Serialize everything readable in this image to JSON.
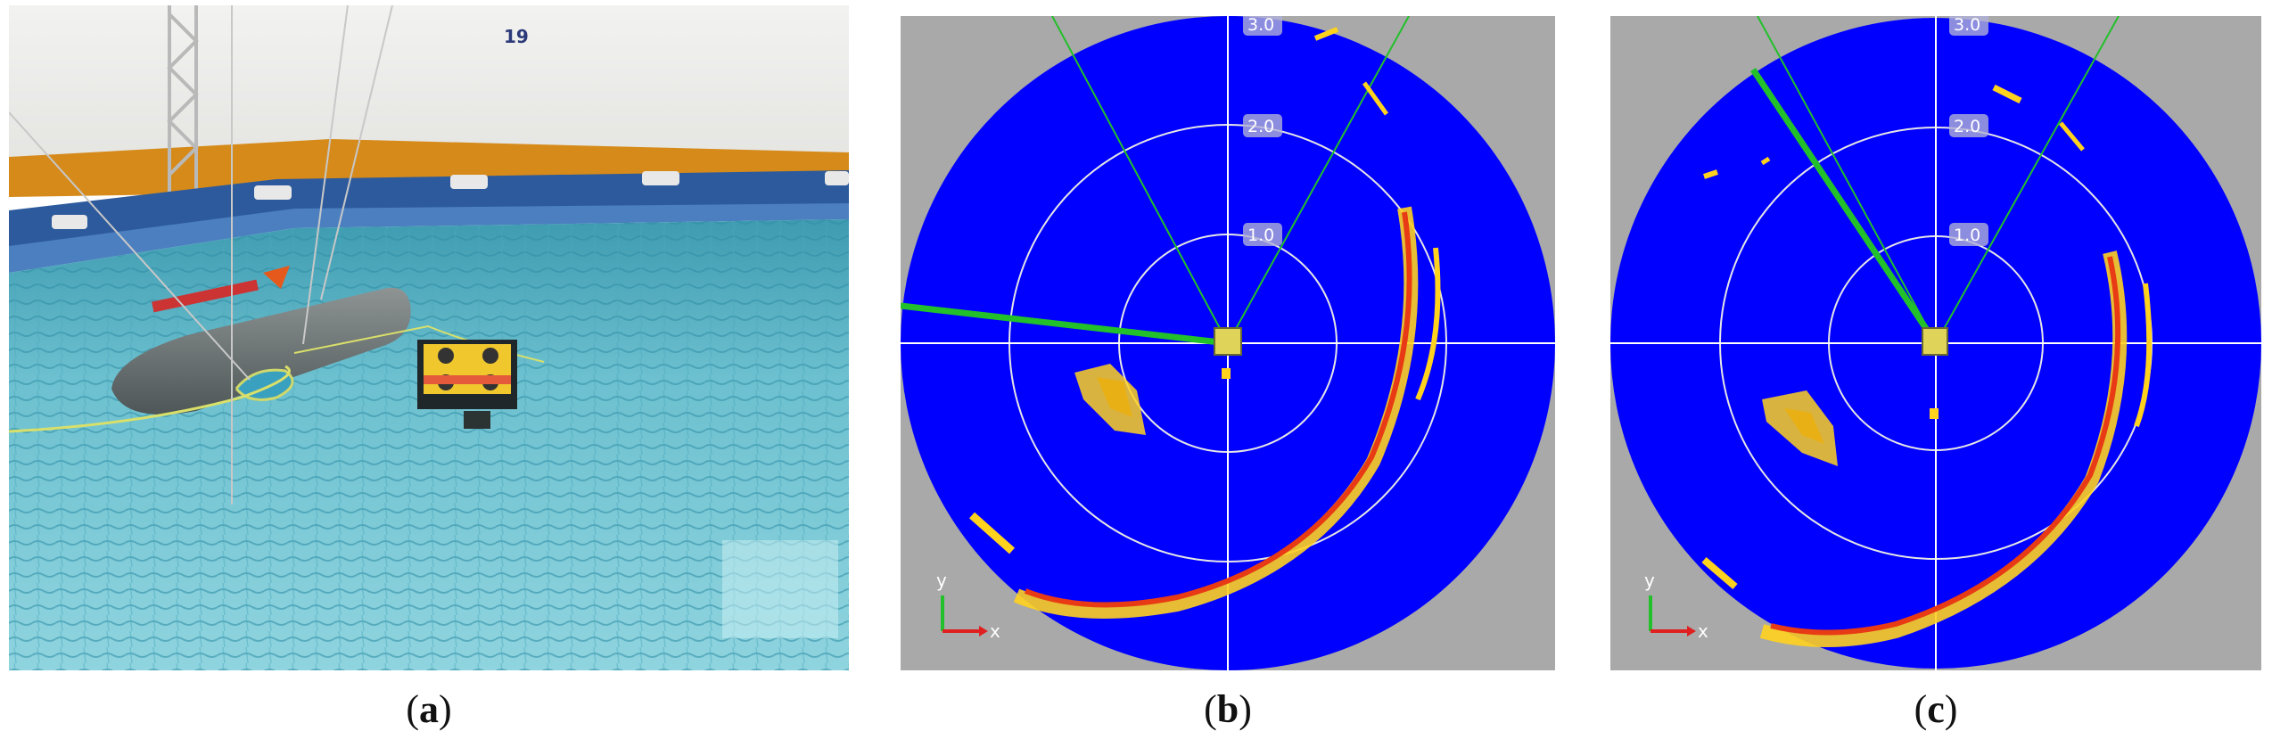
{
  "figure": {
    "panels": [
      {
        "id": "a",
        "caption_open": "(",
        "caption_letter": "a",
        "caption_close": ")",
        "wall_number": "19"
      },
      {
        "id": "b",
        "caption_open": "(",
        "caption_letter": "b",
        "caption_close": ")",
        "range_labels": [
          "1.0",
          "2.0",
          "3.0"
        ],
        "axis_x": "x",
        "axis_y": "y"
      },
      {
        "id": "c",
        "caption_open": "(",
        "caption_letter": "c",
        "caption_close": ")",
        "range_labels": [
          "1.0",
          "2.0",
          "3.0"
        ],
        "axis_x": "x",
        "axis_y": "y"
      }
    ]
  },
  "colors": {
    "sonar_background": "#0000ff",
    "frame_gray": "#a9a9a9",
    "echo_outer": "#ffd21e",
    "echo_inner": "#e83a14",
    "beam_line": "#22c02a",
    "ring_white": "#e6e6e6"
  }
}
